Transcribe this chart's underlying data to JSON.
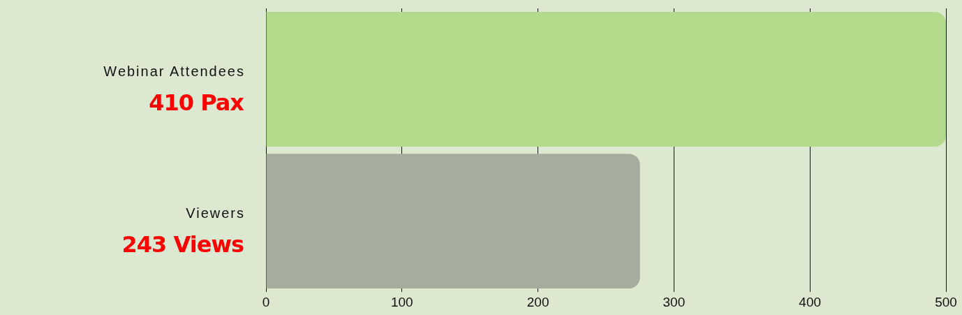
{
  "chart_data": {
    "type": "bar",
    "orientation": "horizontal",
    "categories": [
      "Webinar Attendees",
      "Viewers"
    ],
    "values": [
      500,
      275
    ],
    "colors": [
      "#b3da8a",
      "#a4ad9e"
    ],
    "annotations": [
      "410 Pax",
      "243 Views"
    ],
    "xlim": [
      0,
      500
    ],
    "xticks": [
      0,
      100,
      200,
      300,
      400,
      500
    ],
    "grid": "x",
    "legend": false
  }
}
